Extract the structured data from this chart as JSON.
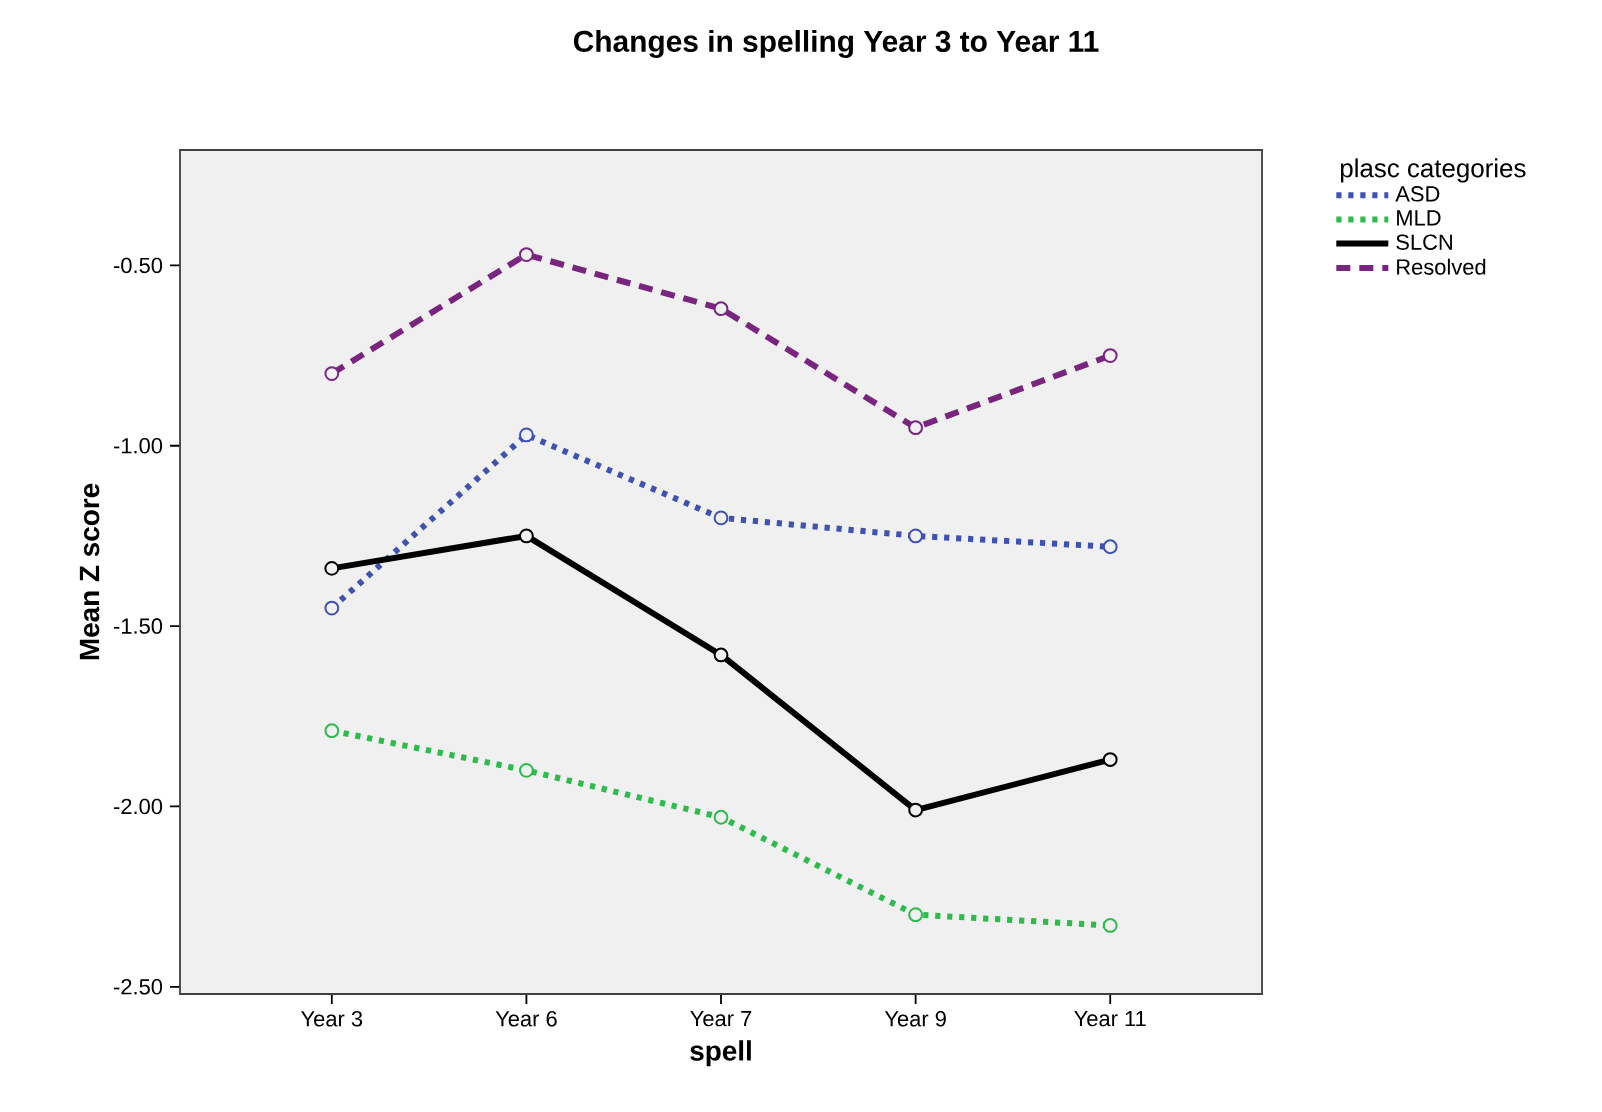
{
  "chart_data": {
    "type": "line",
    "title": "Changes in spelling Year 3 to Year 11",
    "xlabel": "spell",
    "ylabel": "Mean Z score",
    "legend_title": "plasc categories",
    "categories": [
      "Year 3",
      "Year 6",
      "Year 7",
      "Year 9",
      "Year 11"
    ],
    "series": [
      {
        "name": "ASD",
        "color": "#3f51b1",
        "line_style": "dotted",
        "values": [
          -1.45,
          -0.97,
          -1.2,
          -1.25,
          -1.28
        ]
      },
      {
        "name": "MLD",
        "color": "#2dbb4c",
        "line_style": "dotted",
        "values": [
          -1.79,
          -1.9,
          -2.03,
          -2.3,
          -2.33
        ]
      },
      {
        "name": "SLCN",
        "color": "#000000",
        "line_style": "solid",
        "values": [
          -1.34,
          -1.25,
          -1.58,
          -2.01,
          -1.87
        ]
      },
      {
        "name": "Resolved",
        "color": "#79257f",
        "line_style": "dashed",
        "values": [
          -0.8,
          -0.47,
          -0.62,
          -0.95,
          -0.75
        ]
      }
    ],
    "ylim": [
      -2.52,
      -0.18
    ],
    "yticks": [
      {
        "value": -0.5,
        "label": "-0.50"
      },
      {
        "value": -1.0,
        "label": "-1.00"
      },
      {
        "value": -1.5,
        "label": "-1.50"
      },
      {
        "value": -2.0,
        "label": "-2.00"
      },
      {
        "value": -2.5,
        "label": "-2.50"
      }
    ],
    "grid": false,
    "legend": "top right",
    "marker": "circle"
  }
}
